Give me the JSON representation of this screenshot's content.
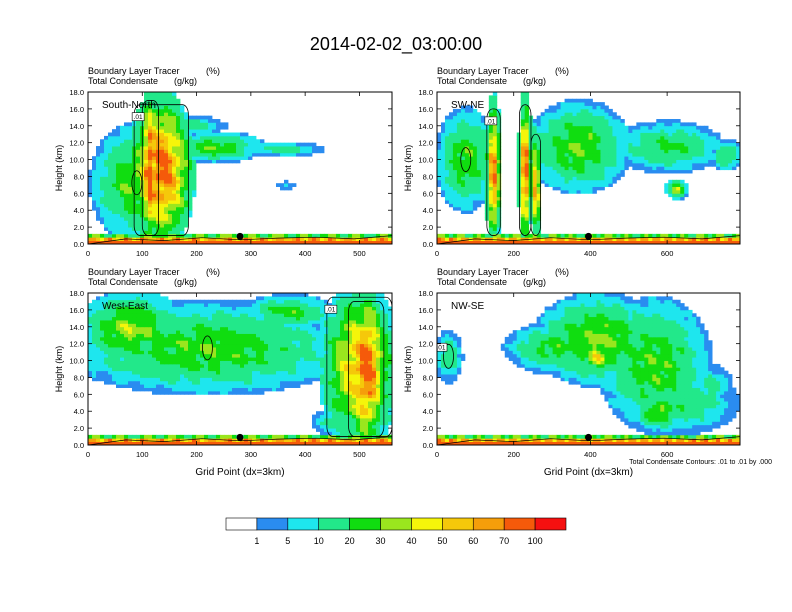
{
  "figure": {
    "title": "2014-02-02_03:00:00",
    "contour_note": "Total Condensate Contours: .01 to .01 by .000",
    "colorbar": {
      "levels": [
        "1",
        "5",
        "10",
        "20",
        "30",
        "40",
        "50",
        "60",
        "70",
        "100"
      ],
      "colors": [
        "#ffffff",
        "#2a8cf0",
        "#1ee6ee",
        "#22e88a",
        "#10dd10",
        "#9ae61e",
        "#f5f50a",
        "#f5c80a",
        "#f59e0a",
        "#f55a0a",
        "#f51010"
      ]
    }
  },
  "chart_data": [
    {
      "type": "heatmap",
      "id": "south-north",
      "section": "South-North",
      "title_line1": "Boundary Layer Tracer",
      "title_line1_units": "(%)",
      "title_line2": "Total Condensate",
      "title_line2_units": "(g/kg)",
      "ylabel": "Height (km)",
      "xlabel": "",
      "xlim": [
        0,
        560
      ],
      "ylim": [
        0,
        18
      ],
      "xticks": [
        "0",
        "100",
        "200",
        "300",
        "400",
        "500"
      ],
      "yticks": [
        "0.0",
        "2.0",
        "4.0",
        "6.0",
        "8.0",
        "10.0",
        "12.0",
        "14.0",
        "16.0",
        "18.0"
      ],
      "surface_point": 280,
      "contour_label": ".01",
      "tracer_blobs": [
        [
          [
            20,
            160
          ],
          [
            1.5,
            13
          ],
          30
        ],
        [
          [
            85,
            185
          ],
          [
            1,
            16.5
          ],
          75
        ],
        [
          [
            160,
            310
          ],
          [
            10,
            13
          ],
          28
        ],
        [
          [
            120,
            240
          ],
          [
            13,
            15
          ],
          18
        ],
        [
          [
            300,
            420
          ],
          [
            10.5,
            12
          ],
          16
        ],
        [
          [
            100,
            130
          ],
          [
            1,
            17
          ],
          85
        ],
        [
          [
            350,
            380
          ],
          [
            6.6,
            7.4
          ],
          6
        ]
      ]
    },
    {
      "type": "heatmap",
      "id": "sw-ne",
      "section": "SW-NE",
      "title_line1": "Boundary Layer Tracer",
      "title_line1_units": "(%)",
      "title_line2": "Total Condensate",
      "title_line2_units": "(g/kg)",
      "ylabel": "Height (km)",
      "xlabel": "",
      "xlim": [
        0,
        790
      ],
      "ylim": [
        0,
        18
      ],
      "xticks": [
        "0",
        "200",
        "400",
        "600"
      ],
      "yticks": [
        "0.0",
        "2.0",
        "4.0",
        "6.0",
        "8.0",
        "10.0",
        "12.0",
        "14.0",
        "16.0",
        "18.0"
      ],
      "surface_point": 395,
      "contour_label": ".01",
      "tracer_blobs": [
        [
          [
            10,
            140
          ],
          [
            5,
            15
          ],
          28
        ],
        [
          [
            130,
            165
          ],
          [
            1,
            16
          ],
          70
        ],
        [
          [
            215,
            245
          ],
          [
            1,
            16.5
          ],
          75
        ],
        [
          [
            245,
            270
          ],
          [
            1,
            13
          ],
          60
        ],
        [
          [
            260,
            480
          ],
          [
            7,
            16
          ],
          30
        ],
        [
          [
            480,
            720
          ],
          [
            9,
            14
          ],
          22
        ],
        [
          [
            600,
            650
          ],
          [
            5.5,
            7.5
          ],
          35
        ],
        [
          [
            720,
            790
          ],
          [
            9,
            12
          ],
          20
        ]
      ]
    },
    {
      "type": "heatmap",
      "id": "west-east",
      "section": "West-East",
      "title_line1": "Boundary Layer Tracer",
      "title_line1_units": "(%)",
      "title_line2": "Total Condensate",
      "title_line2_units": "(g/kg)",
      "ylabel": "Height (km)",
      "xlabel": "Grid Point (dx=3km)",
      "xlim": [
        0,
        560
      ],
      "ylim": [
        0,
        18
      ],
      "xticks": [
        "0",
        "100",
        "200",
        "300",
        "400",
        "500"
      ],
      "yticks": [
        "0.0",
        "2.0",
        "4.0",
        "6.0",
        "8.0",
        "10.0",
        "12.0",
        "14.0",
        "16.0",
        "18.0"
      ],
      "surface_point": 280,
      "contour_label": ".01",
      "tracer_blobs": [
        [
          [
            0,
            440
          ],
          [
            7,
            16
          ],
          28
        ],
        [
          [
            0,
            160
          ],
          [
            10,
            17.5
          ],
          35
        ],
        [
          [
            130,
            400
          ],
          [
            9,
            14
          ],
          22
        ],
        [
          [
            440,
            560
          ],
          [
            1,
            17.5
          ],
          55
        ],
        [
          [
            480,
            545
          ],
          [
            1,
            17
          ],
          80
        ],
        [
          [
            420,
            470
          ],
          [
            1.5,
            4
          ],
          15
        ],
        [
          [
            300,
            440
          ],
          [
            14,
            17.5
          ],
          25
        ]
      ]
    },
    {
      "type": "heatmap",
      "id": "nw-se",
      "section": "NW-SE",
      "title_line1": "Boundary Layer Tracer",
      "title_line1_units": "(%)",
      "title_line2": "Total Condensate",
      "title_line2_units": "(g/kg)",
      "ylabel": "Height (km)",
      "xlabel": "Grid Point (dx=3km)",
      "xlim": [
        0,
        790
      ],
      "ylim": [
        0,
        18
      ],
      "xticks": [
        "0",
        "200",
        "400",
        "600"
      ],
      "yticks": [
        "0.0",
        "2.0",
        "4.0",
        "6.0",
        "8.0",
        "10.0",
        "12.0",
        "14.0",
        "16.0",
        "18.0"
      ],
      "surface_point": 395,
      "contour_label": ".01",
      "tracer_blobs": [
        [
          [
            0,
            60
          ],
          [
            8,
            13
          ],
          18
        ],
        [
          [
            200,
            420
          ],
          [
            9,
            14
          ],
          25
        ],
        [
          [
            280,
            560
          ],
          [
            8,
            17
          ],
          32
        ],
        [
          [
            380,
            460
          ],
          [
            9,
            12
          ],
          45
        ],
        [
          [
            450,
            690
          ],
          [
            3,
            16
          ],
          28
        ],
        [
          [
            520,
            760
          ],
          [
            2,
            8
          ],
          18
        ],
        [
          [
            520,
            640
          ],
          [
            2,
            6
          ],
          30
        ],
        [
          [
            680,
            760
          ],
          [
            5,
            9
          ],
          15
        ]
      ]
    }
  ]
}
